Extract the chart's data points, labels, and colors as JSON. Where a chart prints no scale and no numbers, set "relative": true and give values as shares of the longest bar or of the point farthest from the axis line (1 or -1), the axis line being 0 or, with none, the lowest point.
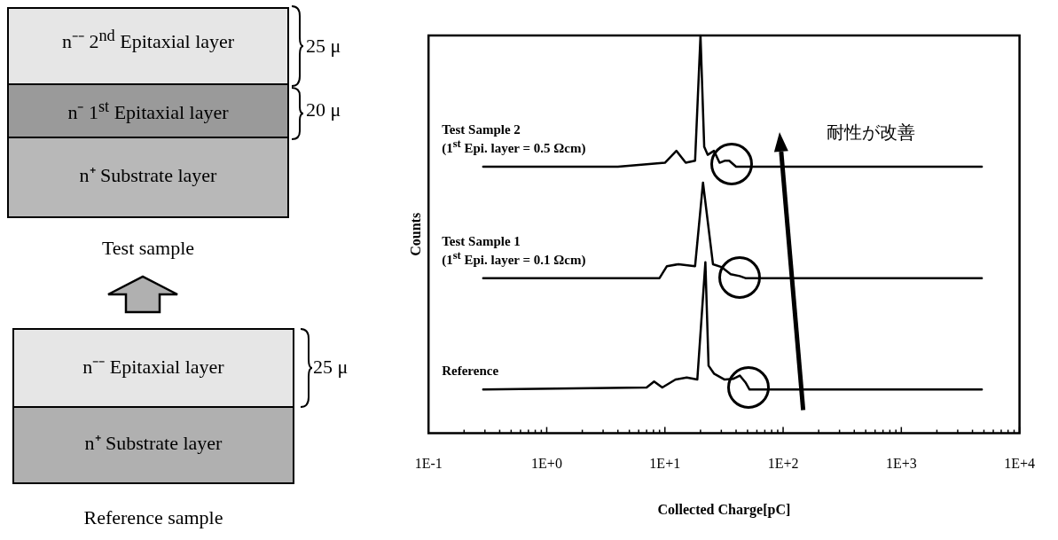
{
  "chart_data": {
    "type": "line",
    "ylabel": "Counts",
    "xlabel": "Collected Charge[pC]",
    "relative": true,
    "log": "x",
    "marker": "none",
    "xlim": [
      0.1,
      10000
    ],
    "xticks": [
      {
        "value": 0.1,
        "label": "1E-1"
      },
      {
        "value": 0.2,
        "label": null
      },
      {
        "value": 0.3,
        "label": null
      },
      {
        "value": 0.4,
        "label": null
      },
      {
        "value": 0.5,
        "label": null
      },
      {
        "value": 0.6,
        "label": null
      },
      {
        "value": 0.7,
        "label": null
      },
      {
        "value": 0.8,
        "label": null
      },
      {
        "value": 0.9,
        "label": null
      },
      {
        "value": 1,
        "label": "1E+0"
      },
      {
        "value": 2,
        "label": null
      },
      {
        "value": 3,
        "label": null
      },
      {
        "value": 4,
        "label": null
      },
      {
        "value": 5,
        "label": null
      },
      {
        "value": 6,
        "label": null
      },
      {
        "value": 7,
        "label": null
      },
      {
        "value": 8,
        "label": null
      },
      {
        "value": 9,
        "label": null
      },
      {
        "value": 10,
        "label": "1E+1"
      },
      {
        "value": 20,
        "label": null
      },
      {
        "value": 30,
        "label": null
      },
      {
        "value": 40,
        "label": null
      },
      {
        "value": 50,
        "label": null
      },
      {
        "value": 60,
        "label": null
      },
      {
        "value": 70,
        "label": null
      },
      {
        "value": 80,
        "label": null
      },
      {
        "value": 90,
        "label": null
      },
      {
        "value": 100,
        "label": "1E+2"
      },
      {
        "value": 200,
        "label": null
      },
      {
        "value": 300,
        "label": null
      },
      {
        "value": 400,
        "label": null
      },
      {
        "value": 500,
        "label": null
      },
      {
        "value": 600,
        "label": null
      },
      {
        "value": 700,
        "label": null
      },
      {
        "value": 800,
        "label": null
      },
      {
        "value": 900,
        "label": null
      },
      {
        "value": 1000,
        "label": "1E+3"
      },
      {
        "value": 2000,
        "label": null
      },
      {
        "value": 3000,
        "label": null
      },
      {
        "value": 4000,
        "label": null
      },
      {
        "value": 5000,
        "label": null
      },
      {
        "value": 6000,
        "label": null
      },
      {
        "value": 7000,
        "label": null
      },
      {
        "value": 8000,
        "label": null
      },
      {
        "value": 9000,
        "label": null
      },
      {
        "value": 10000,
        "label": "1E+4"
      }
    ],
    "series": [
      {
        "name": "Test Sample 2\n(1$^{st}$ Epi. layer = 0.5 Ωcm)",
        "color": "#000000",
        "x": [
          0.29,
          4,
          10,
          12.5,
          15,
          18,
          20,
          21.5,
          23,
          26,
          29,
          32,
          35,
          40,
          4800
        ],
        "values": [
          0.67,
          0.67,
          0.68,
          0.71,
          0.68,
          0.685,
          1.0,
          0.72,
          0.7,
          0.71,
          0.68,
          0.685,
          0.685,
          0.67,
          0.67
        ]
      },
      {
        "name": "Test Sample 1\n(1$^{st}$ Epi. layer = 0.1 Ωcm)",
        "color": "#000000",
        "x": [
          0.29,
          9,
          10.4,
          13,
          18,
          21,
          25.5,
          30,
          36,
          43,
          48,
          4800
        ],
        "values": [
          0.39,
          0.39,
          0.42,
          0.425,
          0.42,
          0.63,
          0.425,
          0.418,
          0.4,
          0.395,
          0.39,
          0.39
        ]
      },
      {
        "name": "Reference",
        "color": "#000000",
        "x": [
          0.29,
          7,
          8.1,
          9.5,
          12.3,
          15.3,
          18.8,
          22,
          23.4,
          26,
          32,
          38,
          43,
          48,
          52,
          4800
        ],
        "values": [
          0.11,
          0.115,
          0.13,
          0.115,
          0.135,
          0.14,
          0.135,
          0.43,
          0.17,
          0.15,
          0.135,
          0.137,
          0.145,
          0.128,
          0.11,
          0.11
        ]
      }
    ],
    "annotations": [
      "n⁻⁻ 2$^{nd}$ Epitaxial layer",
      "n⁻ 1$^{st}$ Epitaxial layer",
      "n⁺ Substrate layer",
      "25 μ",
      "20 μ",
      "Test sample",
      "n⁻⁻ Epitaxial layer",
      "n⁺ Substrate layer",
      "25 μ",
      "Reference sample",
      "耐性が改善"
    ]
  }
}
